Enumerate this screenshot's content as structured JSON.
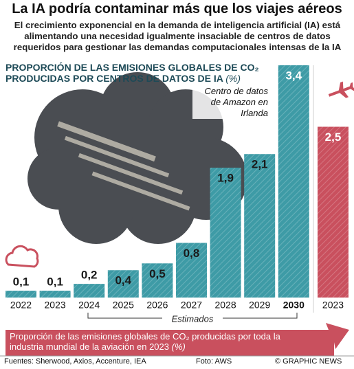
{
  "chart_data": [
    {
      "type": "bar",
      "title": "La IA podría contaminar más que los viajes aéreos",
      "subtitle": "El crecimiento exponencial en la demanda de inteligencia artificial (IA) está alimentando una necesidad igualmente insaciable de centros de datos requeridos para gestionar las demandas computacionales intensas de la IA",
      "axis_label": "PROPORCIÓN DE LAS EMISIONES GLOBALES DE CO₂ PRODUCIDAS POR CENTROS DE DATOS DE IA",
      "unit": "(%)",
      "annotation": "Centro de datos de Amazon en Irlanda",
      "range_label": "Estimados",
      "categories": [
        "2022",
        "2023",
        "2024",
        "2025",
        "2026",
        "2027",
        "2028",
        "2029",
        "2030"
      ],
      "values": [
        0.1,
        0.1,
        0.2,
        0.4,
        0.5,
        0.8,
        1.9,
        2.1,
        3.4
      ],
      "value_labels": [
        "0,1",
        "0,1",
        "0,2",
        "0,4",
        "0,5",
        "0,8",
        "1,9",
        "2,1",
        "3,4"
      ],
      "color": "#3e9ba6"
    },
    {
      "type": "bar",
      "categories": [
        "2023"
      ],
      "values": [
        2.5
      ],
      "value_labels": [
        "2,5"
      ],
      "color": "#c9505e",
      "note": "Proporción de las emisiones globales de CO₂ producidas por toda la industria mundial de la aviación en 2023",
      "unit": "(%)"
    }
  ],
  "footer": {
    "sources": "Fuentes: Sherwood, Axios, Accenture, IEA",
    "photo": "Foto: AWS",
    "copyright": "© GRAPHIC NEWS"
  }
}
